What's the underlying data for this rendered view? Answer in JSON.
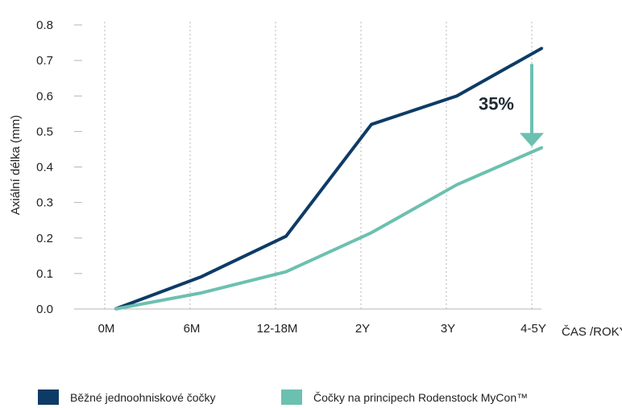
{
  "chart_data": {
    "type": "line",
    "ylabel": "Axiální délka (mm)",
    "xlabel": "ČAS /ROKY",
    "categories": [
      "0M",
      "6M",
      "12-18M",
      "2Y",
      "3Y",
      "4-5Y"
    ],
    "ylim": [
      0.0,
      0.8
    ],
    "yticks": [
      "0.0",
      "0.1",
      "0.2",
      "0.3",
      "0.4",
      "0.5",
      "0.6",
      "0.7",
      "0.8"
    ],
    "grid": "vertical dotted",
    "legend_position": "bottom",
    "series": [
      {
        "name": "Běžné jednoohniskové čočky",
        "color": "#0d3b66",
        "points": [
          [
            0,
            0.0
          ],
          [
            1,
            0.09
          ],
          [
            2,
            0.205
          ],
          [
            3,
            0.52
          ],
          [
            4,
            0.6
          ],
          [
            5,
            0.735
          ]
        ]
      },
      {
        "name": "Čočky na principech Rodenstock MyCon™",
        "color": "#6cc0b0",
        "points": [
          [
            0,
            0.0
          ],
          [
            1,
            0.045
          ],
          [
            2,
            0.105
          ],
          [
            3,
            0.215
          ],
          [
            4,
            0.35
          ],
          [
            5,
            0.455
          ]
        ]
      }
    ],
    "annotation": {
      "text": "35%",
      "arrow_color": "#6cc0b0",
      "at_x": 5,
      "from_y": 0.69,
      "to_y": 0.455
    }
  }
}
